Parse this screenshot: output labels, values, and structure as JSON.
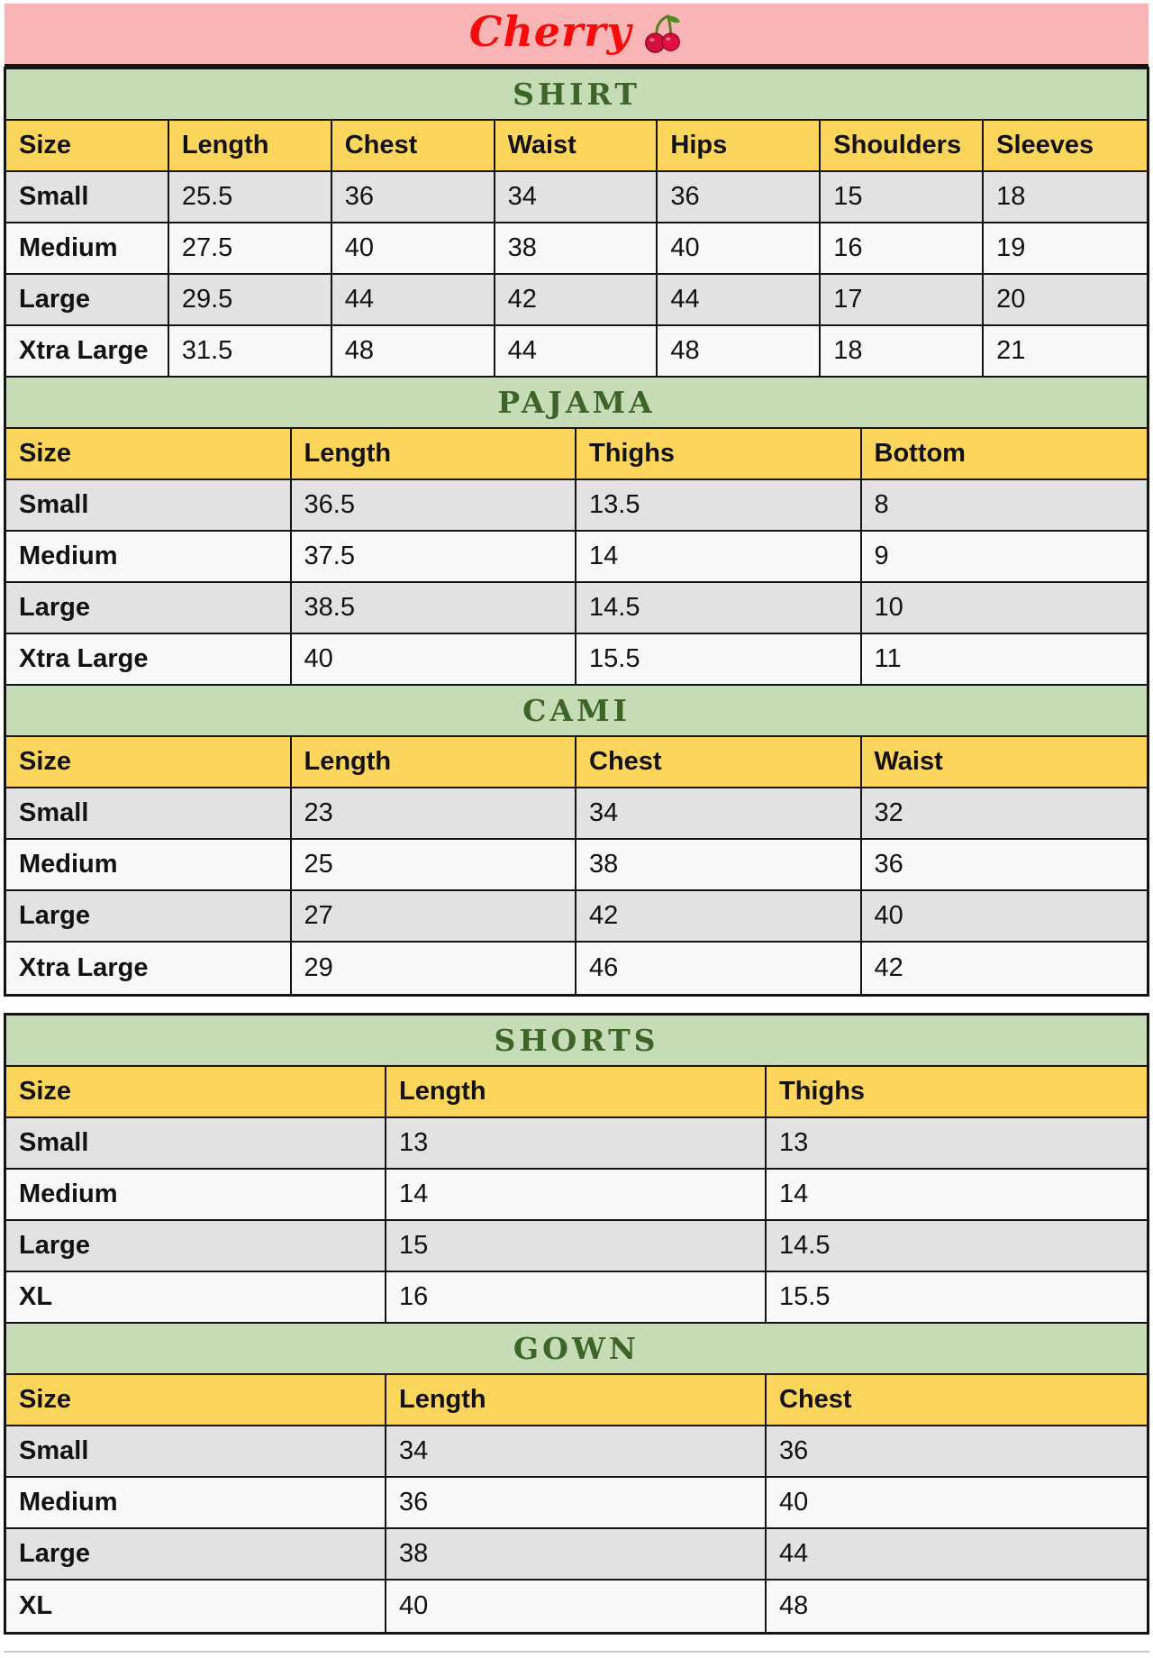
{
  "brand": {
    "title": "Cherry",
    "icon": "cherry-icon"
  },
  "colors": {
    "banner_bg": "#f9b5b6",
    "title_red": "#f70c0c",
    "band_green": "#c6dcb7",
    "title_green": "#3d6527",
    "header_yellow": "#fcd55c",
    "row_gray": "#e2e2e2",
    "row_light": "#f8f8f8"
  },
  "sections": [
    {
      "block": 1,
      "title": "SHIRT",
      "columns": [
        "Size",
        "Length",
        "Chest",
        "Waist",
        "Hips",
        "Shoulders",
        "Sleeves"
      ],
      "rows": [
        [
          "Small",
          "25.5",
          "36",
          "34",
          "36",
          "15",
          "18"
        ],
        [
          "Medium",
          "27.5",
          "40",
          "38",
          "40",
          "16",
          "19"
        ],
        [
          "Large",
          "29.5",
          "44",
          "42",
          "44",
          "17",
          "20"
        ],
        [
          "Xtra Large",
          "31.5",
          "48",
          "44",
          "48",
          "18",
          "21"
        ]
      ]
    },
    {
      "block": 1,
      "title": "PAJAMA",
      "columns": [
        "Size",
        "Length",
        "Thighs",
        "Bottom"
      ],
      "rows": [
        [
          "Small",
          "36.5",
          "13.5",
          "8"
        ],
        [
          "Medium",
          "37.5",
          "14",
          "9"
        ],
        [
          "Large",
          "38.5",
          "14.5",
          "10"
        ],
        [
          "Xtra Large",
          "40",
          "15.5",
          "11"
        ]
      ]
    },
    {
      "block": 1,
      "title": "CAMI",
      "columns": [
        "Size",
        "Length",
        "Chest",
        "Waist"
      ],
      "rows": [
        [
          "Small",
          "23",
          "34",
          "32"
        ],
        [
          "Medium",
          "25",
          "38",
          "36"
        ],
        [
          "Large",
          "27",
          "42",
          "40"
        ],
        [
          "Xtra Large",
          "29",
          "46",
          "42"
        ]
      ]
    },
    {
      "block": 2,
      "title": "SHORTS",
      "columns": [
        "Size",
        "Length",
        "Thighs"
      ],
      "rows": [
        [
          "Small",
          "13",
          "13"
        ],
        [
          "Medium",
          "14",
          "14"
        ],
        [
          "Large",
          "15",
          "14.5"
        ],
        [
          "XL",
          "16",
          "15.5"
        ]
      ]
    },
    {
      "block": 2,
      "title": "GOWN",
      "columns": [
        "Size",
        "Length",
        "Chest"
      ],
      "rows": [
        [
          "Small",
          "34",
          "36"
        ],
        [
          "Medium",
          "36",
          "40"
        ],
        [
          "Large",
          "38",
          "44"
        ],
        [
          "XL",
          "40",
          "48"
        ]
      ]
    }
  ]
}
